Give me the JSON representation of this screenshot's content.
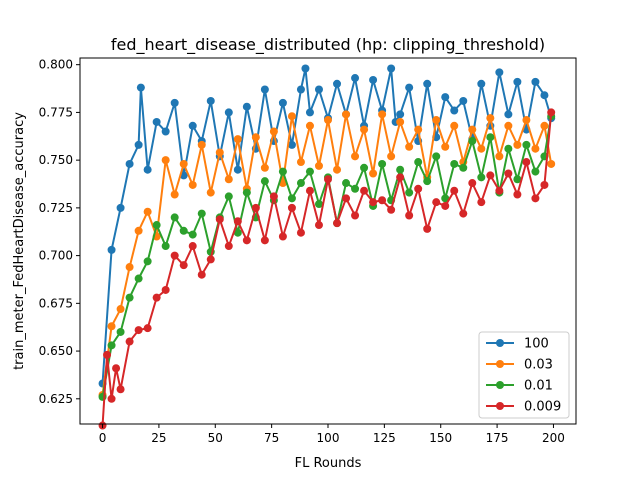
{
  "chart_data": {
    "type": "line",
    "title": "fed_heart_disease_distributed (hp: clipping_threshold)",
    "xlabel": "FL Rounds",
    "ylabel": "train_meter_FedHeartDisease_accuracy",
    "xlim": [
      -10,
      210
    ],
    "ylim": [
      0.6118,
      0.8035
    ],
    "xticks": [
      0,
      25,
      50,
      75,
      100,
      125,
      150,
      175,
      200
    ],
    "xtick_labels": [
      "0",
      "25",
      "50",
      "75",
      "100",
      "125",
      "150",
      "175",
      "200"
    ],
    "yticks": [
      0.625,
      0.65,
      0.675,
      0.7,
      0.725,
      0.75,
      0.775,
      0.8
    ],
    "ytick_labels": [
      "0.625",
      "0.650",
      "0.675",
      "0.700",
      "0.725",
      "0.750",
      "0.775",
      "0.800"
    ],
    "grid": false,
    "legend_position": "lower-right",
    "series": [
      {
        "name": "100",
        "color": "#1f77b4",
        "x": [
          0,
          4,
          8,
          12,
          16,
          17,
          20,
          24,
          28,
          32,
          36,
          40,
          44,
          48,
          52,
          56,
          60,
          64,
          68,
          72,
          76,
          80,
          84,
          88,
          90,
          92,
          96,
          100,
          104,
          108,
          112,
          116,
          120,
          124,
          128,
          130,
          132,
          136,
          140,
          144,
          148,
          152,
          156,
          160,
          164,
          168,
          172,
          176,
          180,
          184,
          188,
          192,
          196,
          199
        ],
        "values": [
          0.633,
          0.703,
          0.725,
          0.748,
          0.758,
          0.788,
          0.745,
          0.77,
          0.765,
          0.78,
          0.742,
          0.768,
          0.76,
          0.781,
          0.752,
          0.775,
          0.745,
          0.778,
          0.756,
          0.787,
          0.76,
          0.78,
          0.758,
          0.787,
          0.798,
          0.775,
          0.787,
          0.772,
          0.79,
          0.774,
          0.793,
          0.768,
          0.792,
          0.776,
          0.798,
          0.77,
          0.774,
          0.788,
          0.76,
          0.79,
          0.762,
          0.783,
          0.776,
          0.781,
          0.761,
          0.79,
          0.768,
          0.796,
          0.774,
          0.791,
          0.766,
          0.791,
          0.784,
          0.772
        ]
      },
      {
        "name": "0.03",
        "color": "#ff7f0e",
        "x": [
          0,
          4,
          8,
          12,
          16,
          20,
          24,
          28,
          32,
          36,
          40,
          44,
          48,
          52,
          56,
          60,
          64,
          68,
          72,
          76,
          80,
          84,
          88,
          92,
          96,
          100,
          104,
          108,
          112,
          116,
          120,
          124,
          128,
          132,
          136,
          140,
          144,
          148,
          152,
          156,
          160,
          164,
          168,
          172,
          176,
          180,
          184,
          188,
          192,
          196,
          199
        ],
        "values": [
          0.627,
          0.663,
          0.672,
          0.694,
          0.713,
          0.723,
          0.71,
          0.75,
          0.732,
          0.748,
          0.737,
          0.758,
          0.733,
          0.754,
          0.74,
          0.761,
          0.735,
          0.762,
          0.746,
          0.765,
          0.738,
          0.773,
          0.749,
          0.768,
          0.747,
          0.771,
          0.745,
          0.774,
          0.752,
          0.766,
          0.743,
          0.774,
          0.752,
          0.77,
          0.757,
          0.766,
          0.741,
          0.771,
          0.757,
          0.768,
          0.749,
          0.766,
          0.756,
          0.772,
          0.752,
          0.768,
          0.758,
          0.771,
          0.756,
          0.768,
          0.748
        ]
      },
      {
        "name": "0.01",
        "color": "#2ca02c",
        "x": [
          0,
          4,
          8,
          12,
          16,
          20,
          24,
          28,
          32,
          36,
          40,
          44,
          48,
          52,
          56,
          60,
          64,
          68,
          72,
          76,
          80,
          84,
          88,
          92,
          96,
          100,
          104,
          108,
          112,
          116,
          120,
          124,
          128,
          132,
          136,
          140,
          144,
          148,
          152,
          156,
          160,
          164,
          168,
          172,
          176,
          180,
          184,
          188,
          192,
          196,
          199
        ],
        "values": [
          0.626,
          0.653,
          0.66,
          0.678,
          0.688,
          0.697,
          0.716,
          0.705,
          0.72,
          0.713,
          0.711,
          0.722,
          0.702,
          0.72,
          0.731,
          0.712,
          0.733,
          0.72,
          0.739,
          0.729,
          0.744,
          0.73,
          0.738,
          0.744,
          0.727,
          0.741,
          0.717,
          0.738,
          0.735,
          0.746,
          0.726,
          0.748,
          0.729,
          0.745,
          0.733,
          0.749,
          0.739,
          0.752,
          0.73,
          0.748,
          0.746,
          0.76,
          0.741,
          0.762,
          0.733,
          0.756,
          0.74,
          0.758,
          0.744,
          0.752,
          0.773
        ]
      },
      {
        "name": "0.009",
        "color": "#d62728",
        "x": [
          0,
          2,
          4,
          6,
          8,
          12,
          16,
          20,
          24,
          28,
          32,
          36,
          40,
          44,
          48,
          52,
          56,
          60,
          64,
          68,
          72,
          76,
          80,
          84,
          88,
          92,
          96,
          100,
          104,
          108,
          112,
          116,
          120,
          124,
          128,
          132,
          136,
          140,
          144,
          148,
          152,
          156,
          160,
          164,
          168,
          172,
          176,
          180,
          184,
          188,
          192,
          196,
          199
        ],
        "values": [
          0.611,
          0.648,
          0.625,
          0.641,
          0.63,
          0.655,
          0.661,
          0.662,
          0.678,
          0.682,
          0.7,
          0.695,
          0.705,
          0.69,
          0.698,
          0.719,
          0.705,
          0.718,
          0.708,
          0.725,
          0.708,
          0.731,
          0.71,
          0.725,
          0.712,
          0.734,
          0.716,
          0.74,
          0.717,
          0.73,
          0.721,
          0.734,
          0.728,
          0.729,
          0.724,
          0.741,
          0.721,
          0.735,
          0.714,
          0.728,
          0.726,
          0.734,
          0.722,
          0.738,
          0.728,
          0.742,
          0.734,
          0.743,
          0.732,
          0.749,
          0.73,
          0.737,
          0.775
        ]
      }
    ]
  }
}
